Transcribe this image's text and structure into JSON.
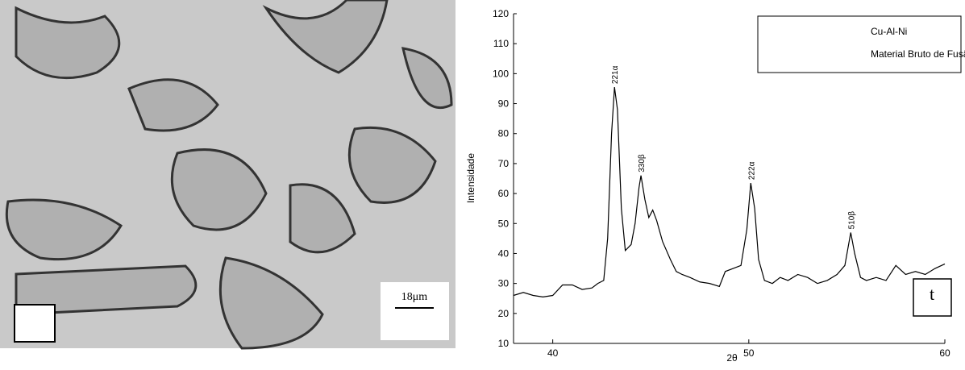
{
  "micrograph": {
    "scale_label": "18μm"
  },
  "chart_data": {
    "type": "line",
    "x_label": "2θ",
    "y_label": "Intensidade",
    "xlim": [
      38,
      60
    ],
    "xticks": [
      40,
      50,
      60
    ],
    "ylim": [
      10,
      120
    ],
    "yticks": [
      10,
      20,
      30,
      40,
      50,
      60,
      70,
      80,
      90,
      100,
      110,
      120
    ],
    "x": [
      38.0,
      38.5,
      39.0,
      39.5,
      40.0,
      40.5,
      41.0,
      41.5,
      42.0,
      42.3,
      42.6,
      42.8,
      43.0,
      43.15,
      43.3,
      43.5,
      43.7,
      44.0,
      44.2,
      44.4,
      44.5,
      44.7,
      44.9,
      45.1,
      45.3,
      45.6,
      46.0,
      46.3,
      46.6,
      47.0,
      47.5,
      48.0,
      48.5,
      48.8,
      49.2,
      49.6,
      49.9,
      50.1,
      50.3,
      50.5,
      50.8,
      51.2,
      51.6,
      52.0,
      52.5,
      53.0,
      53.5,
      54.0,
      54.5,
      54.9,
      55.2,
      55.4,
      55.7,
      56.0,
      56.5,
      57.0,
      57.5,
      58.0,
      58.5,
      59.0,
      59.5,
      60.0
    ],
    "series": [
      {
        "name": "Cu-Al-Ni",
        "color": "#000000",
        "values": [
          26,
          27,
          26,
          25.5,
          26,
          29.5,
          29.5,
          28,
          28.5,
          30,
          31,
          45,
          80,
          95.5,
          88,
          55,
          41,
          43,
          50,
          62,
          66,
          58,
          52,
          54.5,
          51,
          44,
          38,
          34,
          33,
          32,
          30.5,
          30,
          29,
          34,
          35,
          36,
          48,
          63.5,
          55,
          38,
          31,
          30,
          32,
          31,
          33,
          32,
          30,
          31,
          33,
          36,
          47,
          40,
          32,
          31,
          32,
          31,
          36,
          33,
          34,
          33,
          35,
          36.5
        ]
      }
    ],
    "annotation": "Material Bruto de Fusão",
    "peak_labels": [
      {
        "x": 43.15,
        "y": 95.5,
        "text": "221α"
      },
      {
        "x": 44.5,
        "y": 66,
        "text": "330β"
      },
      {
        "x": 50.1,
        "y": 63.5,
        "text": "222α"
      },
      {
        "x": 55.2,
        "y": 47,
        "text": "510β"
      }
    ],
    "panel_label": "t"
  }
}
